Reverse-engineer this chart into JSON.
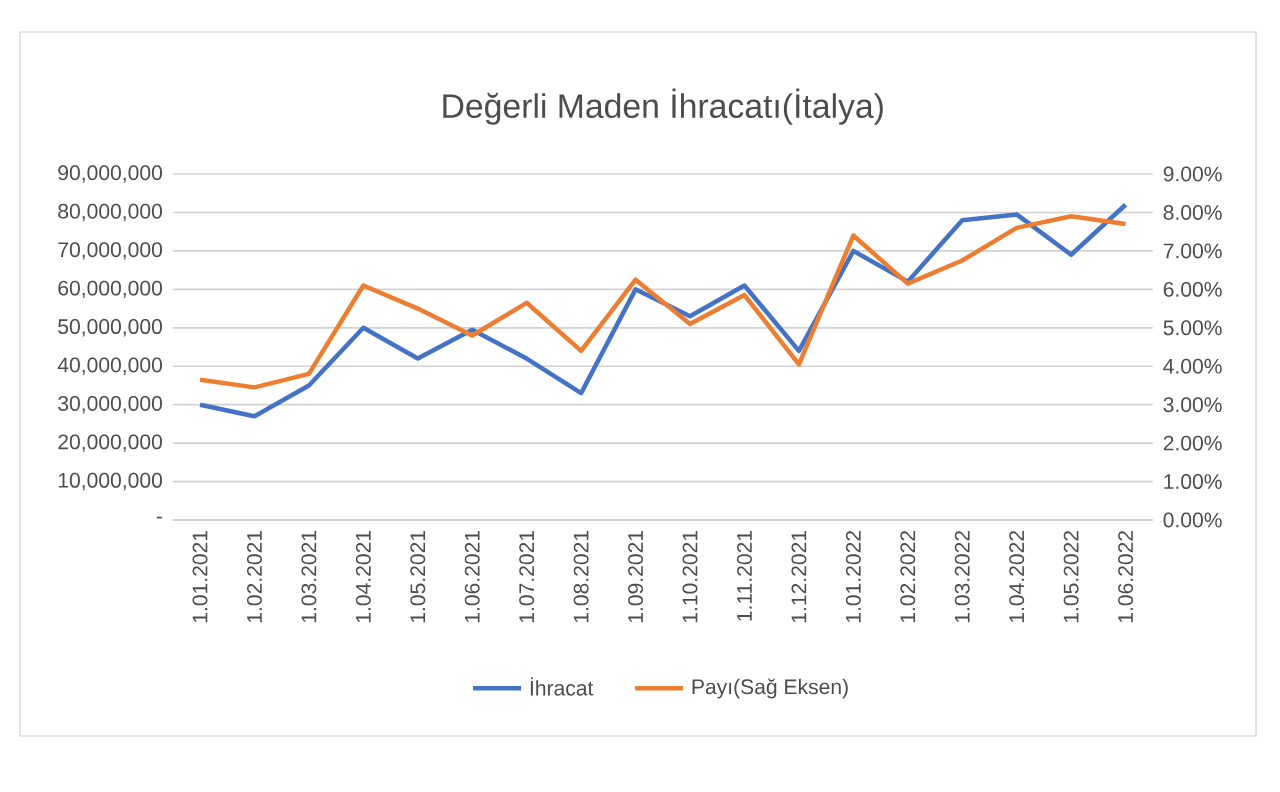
{
  "chart_data": {
    "type": "line",
    "title": "Değerli Maden İhracatı(İtalya)",
    "categories": [
      "1.01.2021",
      "1.02.2021",
      "1.03.2021",
      "1.04.2021",
      "1.05.2021",
      "1.06.2021",
      "1.07.2021",
      "1.08.2021",
      "1.09.2021",
      "1.10.2021",
      "1.11.2021",
      "1.12.2021",
      "1.01.2022",
      "1.02.2022",
      "1.03.2022",
      "1.04.2022",
      "1.05.2022",
      "1.06.2022"
    ],
    "series": [
      {
        "name": "İhracat",
        "color": "#4472c4",
        "values": [
          30000000,
          27000000,
          35000000,
          50000000,
          42000000,
          49500000,
          42000000,
          33000000,
          60000000,
          53000000,
          61000000,
          44000000,
          70000000,
          62000000,
          78000000,
          79500000,
          69000000,
          82000000
        ]
      },
      {
        "name": "Payı(Sağ Eksen)",
        "color": "#ed7d31",
        "axis": "y2",
        "values": [
          3.65,
          3.45,
          3.8,
          6.1,
          5.5,
          4.8,
          5.65,
          4.4,
          6.25,
          5.1,
          5.85,
          4.05,
          7.4,
          6.15,
          6.75,
          7.6,
          7.9,
          7.7
        ]
      }
    ],
    "ylim": [
      0,
      90000000
    ],
    "yticks": [
      {
        "value": 0,
        "label": "-"
      },
      {
        "value": 10000000,
        "label": "10,000,000"
      },
      {
        "value": 20000000,
        "label": "20,000,000"
      },
      {
        "value": 30000000,
        "label": "30,000,000"
      },
      {
        "value": 40000000,
        "label": "40,000,000"
      },
      {
        "value": 50000000,
        "label": "50,000,000"
      },
      {
        "value": 60000000,
        "label": "60,000,000"
      },
      {
        "value": 70000000,
        "label": "70,000,000"
      },
      {
        "value": 80000000,
        "label": "80,000,000"
      },
      {
        "value": 90000000,
        "label": "90,000,000"
      }
    ],
    "y2lim": [
      0,
      9
    ],
    "y2ticks": [
      {
        "value": 0,
        "label": "0.00%"
      },
      {
        "value": 1,
        "label": "1.00%"
      },
      {
        "value": 2,
        "label": "2.00%"
      },
      {
        "value": 3,
        "label": "3.00%"
      },
      {
        "value": 4,
        "label": "4.00%"
      },
      {
        "value": 5,
        "label": "5.00%"
      },
      {
        "value": 6,
        "label": "6.00%"
      },
      {
        "value": 7,
        "label": "7.00%"
      },
      {
        "value": 8,
        "label": "8.00%"
      },
      {
        "value": 9,
        "label": "9.00%"
      }
    ],
    "grid": "y",
    "legend": "bottom",
    "marker": "none",
    "line_style": "solid"
  }
}
